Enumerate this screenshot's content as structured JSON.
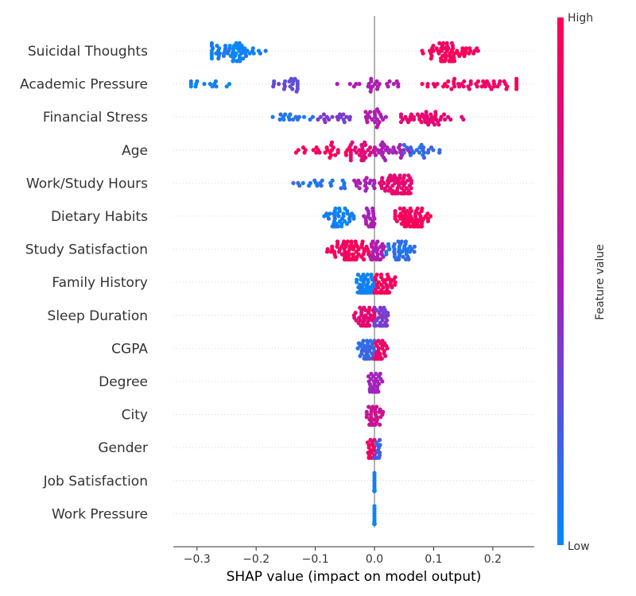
{
  "chart_data": {
    "type": "scatter",
    "subtype": "shap-beeswarm",
    "xlabel": "SHAP value (impact on model output)",
    "xlim": [
      -0.34,
      0.27
    ],
    "xticks": [
      -0.3,
      -0.2,
      -0.1,
      0.0,
      0.1,
      0.2
    ],
    "xtick_labels": [
      "−0.3",
      "−0.2",
      "−0.1",
      "0.0",
      "0.1",
      "0.2"
    ],
    "features": [
      "Suicidal Thoughts",
      "Academic Pressure",
      "Financial Stress",
      "Age",
      "Work/Study Hours",
      "Dietary Habits",
      "Study Satisfaction",
      "Family History",
      "Sleep Duration",
      "CGPA",
      "Degree",
      "City",
      "Gender",
      "Job Satisfaction",
      "Work Pressure"
    ],
    "clusters": [
      {
        "feature": "Suicidal Thoughts",
        "groups": [
          {
            "min": -0.275,
            "max": -0.13,
            "center": -0.235,
            "spread": 0.025,
            "n": 60,
            "color": 0.05
          },
          {
            "min": 0.08,
            "max": 0.18,
            "center": 0.125,
            "spread": 0.02,
            "n": 75,
            "color": 0.95
          }
        ]
      },
      {
        "feature": "Academic Pressure",
        "groups": [
          {
            "min": -0.31,
            "max": -0.22,
            "center": -0.28,
            "spread": 0.025,
            "n": 14,
            "color": 0.05
          },
          {
            "min": -0.22,
            "max": -0.13,
            "center": -0.145,
            "spread": 0.02,
            "n": 20,
            "color": 0.3
          },
          {
            "min": -0.09,
            "max": 0.04,
            "center": 0.0,
            "spread": 0.03,
            "n": 24,
            "color": 0.55
          },
          {
            "min": 0.06,
            "max": 0.24,
            "center": 0.16,
            "spread": 0.04,
            "n": 50,
            "color": 0.9
          }
        ]
      },
      {
        "feature": "Financial Stress",
        "groups": [
          {
            "min": -0.175,
            "max": -0.08,
            "center": -0.14,
            "spread": 0.025,
            "n": 16,
            "color": 0.1
          },
          {
            "min": -0.1,
            "max": -0.035,
            "center": -0.06,
            "spread": 0.015,
            "n": 18,
            "color": 0.35
          },
          {
            "min": -0.015,
            "max": 0.02,
            "center": 0.0,
            "spread": 0.01,
            "n": 22,
            "color": 0.55
          },
          {
            "min": 0.045,
            "max": 0.185,
            "center": 0.085,
            "spread": 0.03,
            "n": 45,
            "color": 0.85
          }
        ]
      },
      {
        "feature": "Age",
        "groups": [
          {
            "min": -0.145,
            "max": -0.04,
            "center": -0.08,
            "spread": 0.025,
            "n": 30,
            "color": 0.95
          },
          {
            "min": -0.04,
            "max": 0.0,
            "center": -0.02,
            "spread": 0.012,
            "n": 28,
            "color": 0.8
          },
          {
            "min": 0.0,
            "max": 0.06,
            "center": 0.03,
            "spread": 0.015,
            "n": 30,
            "color": 0.5
          },
          {
            "min": 0.05,
            "max": 0.135,
            "center": 0.075,
            "spread": 0.02,
            "n": 22,
            "color": 0.15
          }
        ]
      },
      {
        "feature": "Work/Study Hours",
        "groups": [
          {
            "min": -0.17,
            "max": -0.05,
            "center": -0.085,
            "spread": 0.025,
            "n": 20,
            "color": 0.1
          },
          {
            "min": -0.05,
            "max": 0.0,
            "center": -0.015,
            "spread": 0.012,
            "n": 18,
            "color": 0.5
          },
          {
            "min": 0.0,
            "max": 0.09,
            "center": 0.04,
            "spread": 0.015,
            "n": 70,
            "color": 0.85
          }
        ]
      },
      {
        "feature": "Dietary Habits",
        "groups": [
          {
            "min": -0.085,
            "max": -0.035,
            "center": -0.06,
            "spread": 0.012,
            "n": 45,
            "color": 0.05
          },
          {
            "min": -0.02,
            "max": 0.0,
            "center": -0.008,
            "spread": 0.006,
            "n": 25,
            "color": 0.5
          },
          {
            "min": 0.035,
            "max": 0.1,
            "center": 0.065,
            "spread": 0.015,
            "n": 75,
            "color": 0.95
          }
        ]
      },
      {
        "feature": "Study Satisfaction",
        "groups": [
          {
            "min": -0.08,
            "max": -0.01,
            "center": -0.045,
            "spread": 0.018,
            "n": 70,
            "color": 0.95
          },
          {
            "min": -0.01,
            "max": 0.02,
            "center": 0.004,
            "spread": 0.008,
            "n": 28,
            "color": 0.55
          },
          {
            "min": 0.02,
            "max": 0.1,
            "center": 0.045,
            "spread": 0.014,
            "n": 40,
            "color": 0.12
          }
        ]
      },
      {
        "feature": "Family History",
        "groups": [
          {
            "min": -0.03,
            "max": 0.0,
            "center": -0.015,
            "spread": 0.008,
            "n": 70,
            "color": 0.05
          },
          {
            "min": 0.0,
            "max": 0.035,
            "center": 0.015,
            "spread": 0.008,
            "n": 70,
            "color": 0.95
          }
        ]
      },
      {
        "feature": "Sleep Duration",
        "groups": [
          {
            "min": -0.04,
            "max": 0.0,
            "center": -0.015,
            "spread": 0.01,
            "n": 45,
            "color": 0.85
          },
          {
            "min": 0.0,
            "max": 0.03,
            "center": 0.01,
            "spread": 0.008,
            "n": 45,
            "color": 0.35
          }
        ]
      },
      {
        "feature": "CGPA",
        "groups": [
          {
            "min": -0.035,
            "max": 0.0,
            "center": -0.012,
            "spread": 0.008,
            "n": 40,
            "color": 0.15
          },
          {
            "min": 0.0,
            "max": 0.03,
            "center": 0.008,
            "spread": 0.006,
            "n": 40,
            "color": 0.9
          }
        ]
      },
      {
        "feature": "Degree",
        "groups": [
          {
            "min": -0.035,
            "max": 0.015,
            "center": 0.0,
            "spread": 0.006,
            "n": 50,
            "color": 0.5
          }
        ]
      },
      {
        "feature": "City",
        "groups": [
          {
            "min": -0.03,
            "max": 0.025,
            "center": 0.0,
            "spread": 0.006,
            "n": 40,
            "color": 0.7
          }
        ]
      },
      {
        "feature": "Gender",
        "groups": [
          {
            "min": -0.015,
            "max": 0.0,
            "center": -0.005,
            "spread": 0.004,
            "n": 30,
            "color": 0.9
          },
          {
            "min": 0.0,
            "max": 0.015,
            "center": 0.004,
            "spread": 0.004,
            "n": 30,
            "color": 0.2
          }
        ]
      },
      {
        "feature": "Job Satisfaction",
        "groups": [
          {
            "min": 0.0,
            "max": 0.0,
            "center": 0.0,
            "spread": 0.0,
            "n": 60,
            "color": 0.05
          }
        ]
      },
      {
        "feature": "Work Pressure",
        "groups": [
          {
            "min": 0.0,
            "max": 0.0,
            "center": 0.0,
            "spread": 0.0,
            "n": 60,
            "color": 0.05
          }
        ]
      }
    ],
    "colorbar": {
      "title": "Feature value",
      "high_label": "High",
      "low_label": "Low",
      "low_color": "#008bfb",
      "mid_color": "#a81fb9",
      "high_color": "#ff0052"
    },
    "grid": false
  }
}
